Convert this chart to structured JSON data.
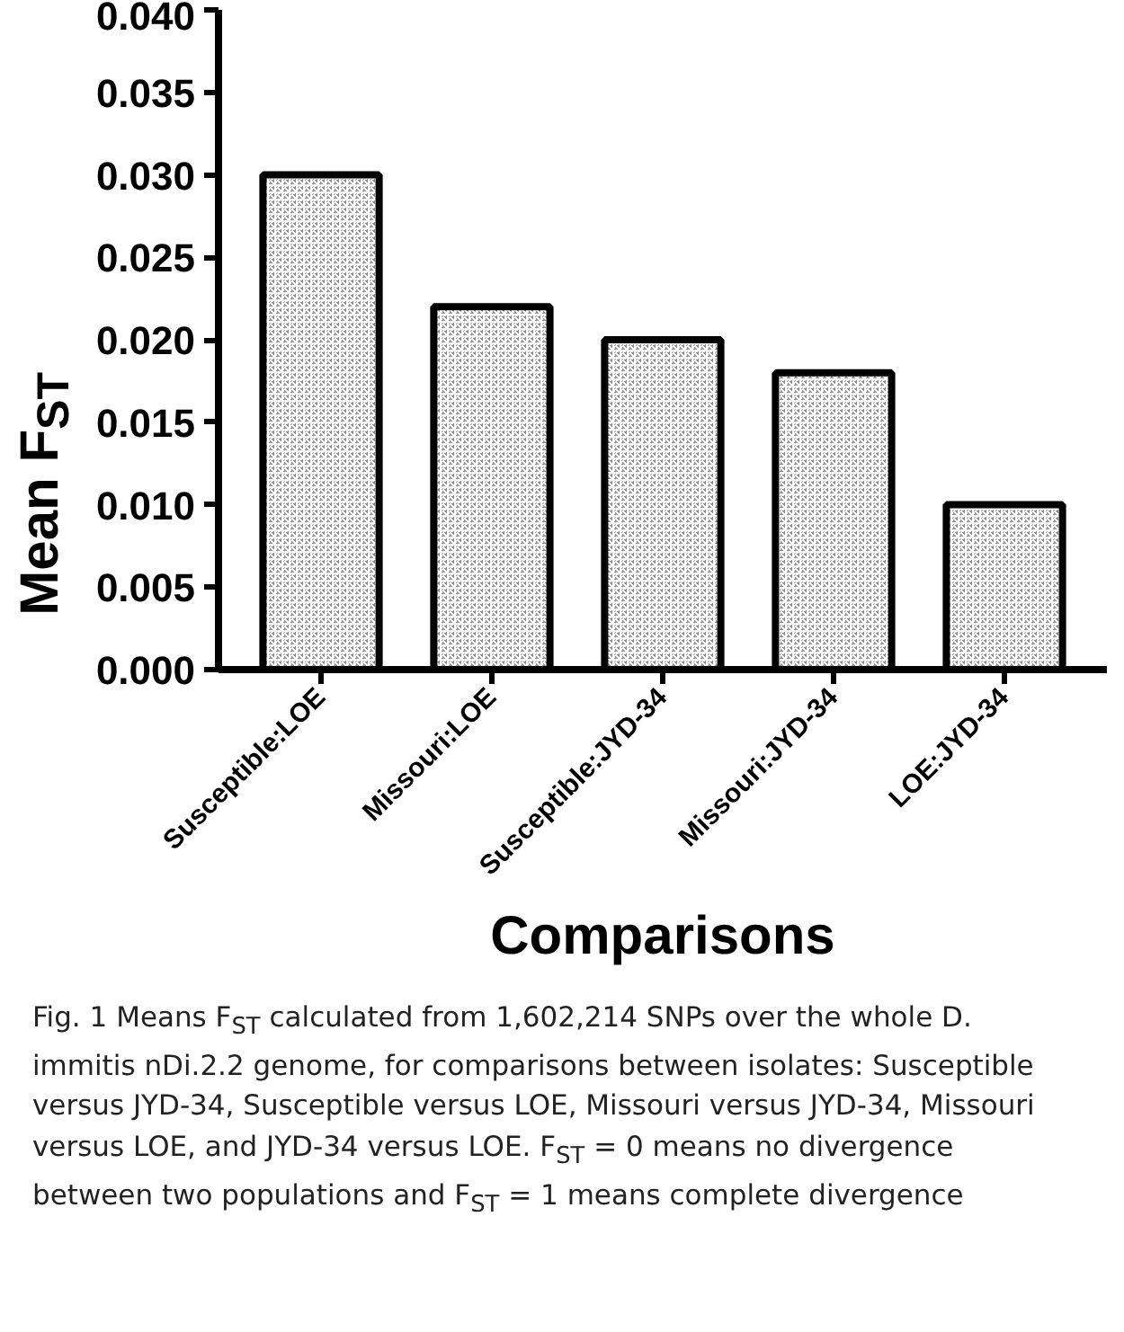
{
  "chart_data": {
    "type": "bar",
    "xlabel": "Comparisons",
    "ylabel": "Mean F$_{ST}$",
    "categories": [
      "Susceptible:LOE",
      "Missouri:LOE",
      "Susceptible:JYD-34",
      "Missouri:JYD-34",
      "LOE:JYD-34"
    ],
    "values": [
      0.03,
      0.022,
      0.02,
      0.018,
      0.01
    ],
    "color": "#8a8a8a",
    "ylim": [
      0,
      0.04
    ],
    "yticks": [
      {
        "value": 0,
        "label": "0.000"
      },
      {
        "value": 0.005,
        "label": "0.005"
      },
      {
        "value": 0.01,
        "label": "0.010"
      },
      {
        "value": 0.015,
        "label": "0.015"
      },
      {
        "value": 0.02,
        "label": "0.020"
      },
      {
        "value": 0.025,
        "label": "0.025"
      },
      {
        "value": 0.03,
        "label": "0.030"
      },
      {
        "value": 0.035,
        "label": "0.035"
      },
      {
        "value": 0.04,
        "label": "0.040"
      }
    ],
    "grid": false,
    "annotations": [
      "Fig. 1 Means F$_{ST}$ calculated from 1,602,214 SNPs over the whole D. immitis nDi.2.2 genome, for comparisons between isolates: Susceptible versus JYD-34, Susceptible versus LOE, Missouri versus JYD-34, Missouri versus LOE, and JYD-34 versus LOE. F$_{ST}$ = 0 means no divergence between two populations and F$_{ST}$ = 1 means complete divergence"
    ]
  }
}
